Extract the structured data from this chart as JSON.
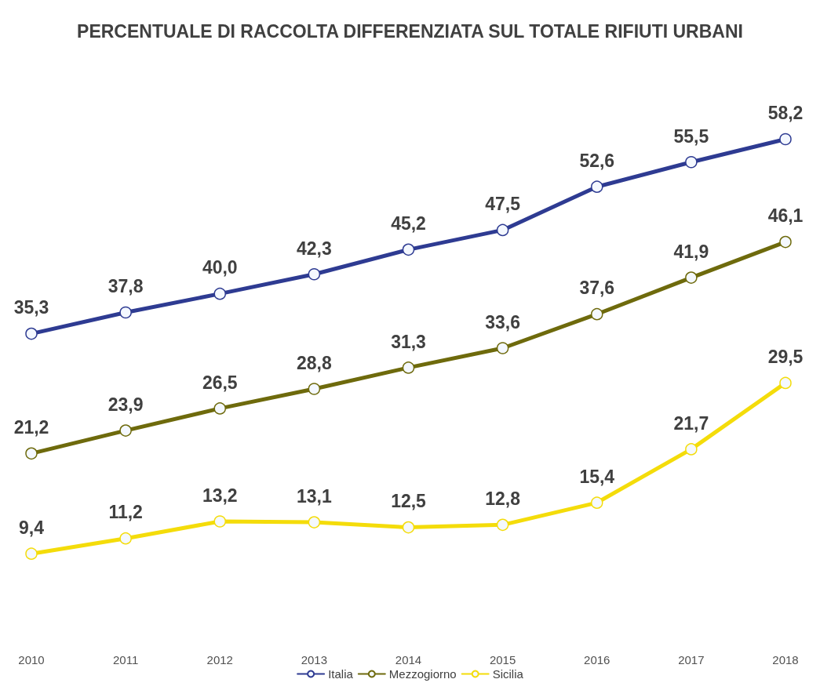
{
  "chart_data": {
    "type": "line",
    "title": "PERCENTUALE DI RACCOLTA DIFFERENZIATA SUL TOTALE RIFIUTI URBANI",
    "categories": [
      "2010",
      "2011",
      "2012",
      "2013",
      "2014",
      "2015",
      "2016",
      "2017",
      "2018"
    ],
    "series": [
      {
        "name": "Italia",
        "color": "#2e3b92",
        "values": [
          35.3,
          37.8,
          40.0,
          42.3,
          45.2,
          47.5,
          52.6,
          55.5,
          58.2
        ],
        "value_labels": [
          "35,3",
          "37,8",
          "40,0",
          "42,3",
          "45,2",
          "47,5",
          "52,6",
          "55,5",
          "58,2"
        ]
      },
      {
        "name": "Mezzogiorno",
        "color": "#6e6a0c",
        "values": [
          21.2,
          23.9,
          26.5,
          28.8,
          31.3,
          33.6,
          37.6,
          41.9,
          46.1
        ],
        "value_labels": [
          "21,2",
          "23,9",
          "26,5",
          "28,8",
          "31,3",
          "33,6",
          "37,6",
          "41,9",
          "46,1"
        ]
      },
      {
        "name": "Sicilia",
        "color": "#f4dc0a",
        "values": [
          9.4,
          11.2,
          13.2,
          13.1,
          12.5,
          12.8,
          15.4,
          21.7,
          29.5
        ],
        "value_labels": [
          "9,4",
          "11,2",
          "13,2",
          "13,1",
          "12,5",
          "12,8",
          "15,4",
          "21,7",
          "29,5"
        ]
      }
    ],
    "legend": "bottom",
    "marker": "circle",
    "line_style": "solid"
  }
}
